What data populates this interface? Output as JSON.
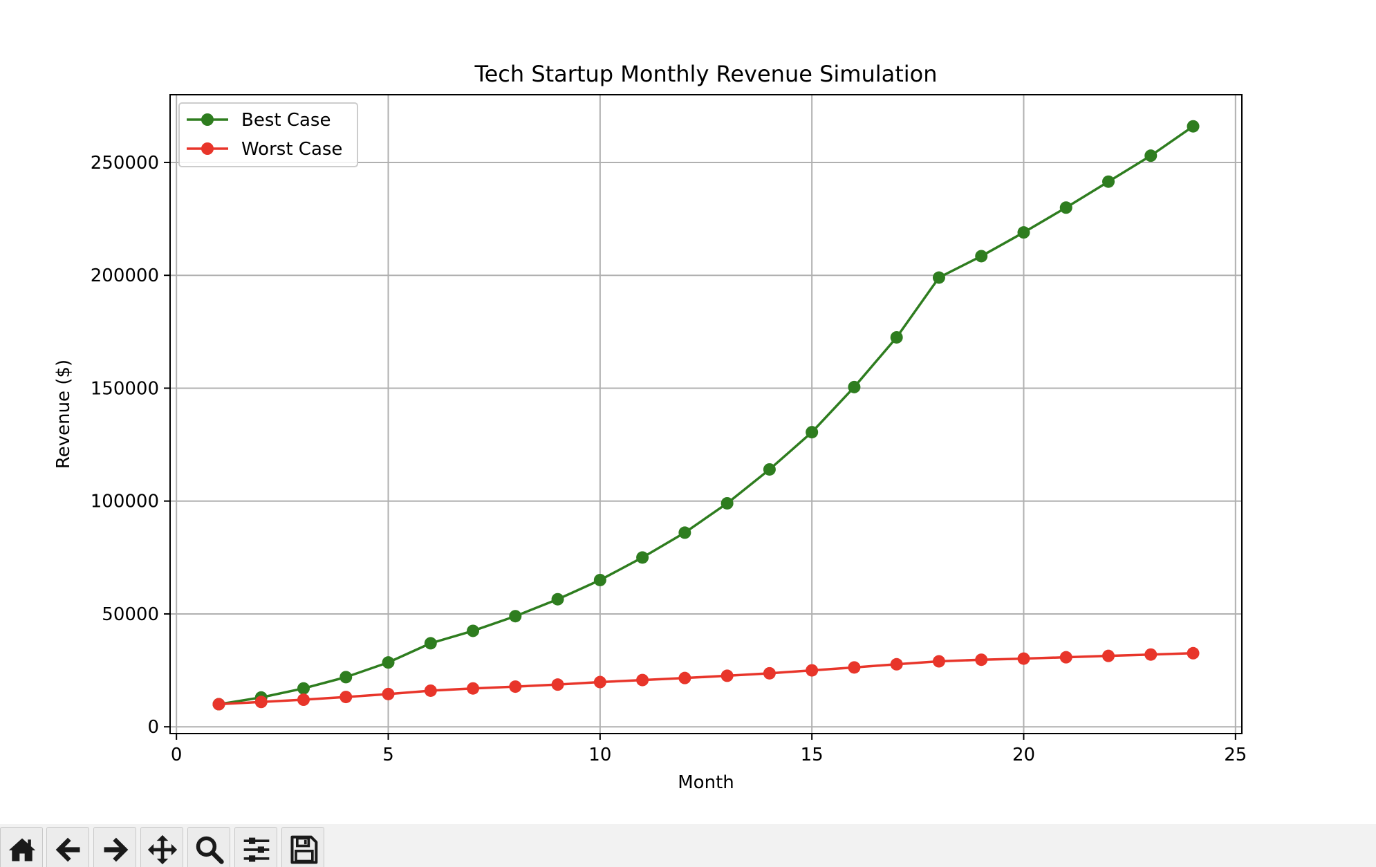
{
  "toolbar": {
    "buttons": [
      {
        "name": "home-button",
        "icon": "home-icon"
      },
      {
        "name": "back-button",
        "icon": "arrow-left-icon"
      },
      {
        "name": "forward-button",
        "icon": "arrow-right-icon"
      },
      {
        "name": "pan-button",
        "icon": "move-icon"
      },
      {
        "name": "zoom-button",
        "icon": "search-icon"
      },
      {
        "name": "configure-subplots-button",
        "icon": "sliders-icon"
      },
      {
        "name": "save-button",
        "icon": "floppy-disk-icon"
      }
    ]
  },
  "chart_data": {
    "type": "line",
    "title": "Tech Startup Monthly Revenue Simulation",
    "xlabel": "Month",
    "ylabel": "Revenue ($)",
    "xlim": [
      -0.15,
      25.15
    ],
    "ylim": [
      -3000,
      280000
    ],
    "xticks": [
      0,
      5,
      10,
      15,
      20,
      25
    ],
    "yticks": [
      0,
      50000,
      100000,
      150000,
      200000,
      250000
    ],
    "grid": true,
    "legend_position": "top-left",
    "x": [
      1,
      2,
      3,
      4,
      5,
      6,
      7,
      8,
      9,
      10,
      11,
      12,
      13,
      14,
      15,
      16,
      17,
      18,
      19,
      20,
      21,
      22,
      23,
      24
    ],
    "series": [
      {
        "name": "Best Case",
        "color": "#2e7d1f",
        "marker": "circle",
        "values": [
          10000,
          13000,
          17000,
          22000,
          28500,
          37000,
          42500,
          49000,
          56500,
          65000,
          75000,
          86000,
          99000,
          114000,
          130500,
          150500,
          172500,
          199000,
          208500,
          219000,
          230000,
          241500,
          253000,
          266000
        ]
      },
      {
        "name": "Worst Case",
        "color": "#e8352a",
        "marker": "circle",
        "values": [
          10000,
          11000,
          12000,
          13200,
          14500,
          16000,
          17000,
          17800,
          18700,
          19800,
          20700,
          21600,
          22600,
          23700,
          25000,
          26300,
          27700,
          29000,
          29700,
          30200,
          30800,
          31400,
          32000,
          32600
        ]
      }
    ]
  }
}
